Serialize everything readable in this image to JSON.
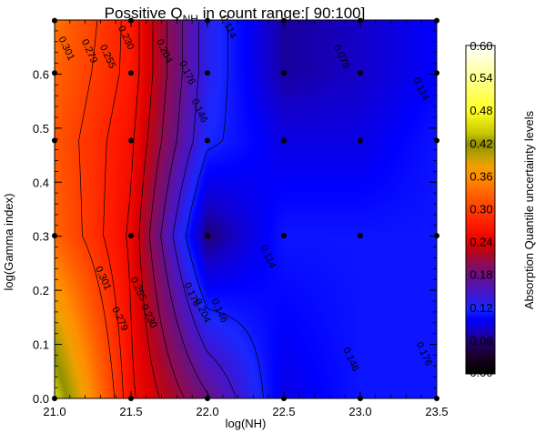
{
  "chart_data": {
    "type": "heatmap",
    "title": {
      "prefix": "Possitive Q",
      "subscript": "NH",
      "suffix": " in count range:[ 90:100]"
    },
    "xlabel": "log(NH)",
    "ylabel": "log(Gamma index)",
    "xlim": [
      21.0,
      23.5
    ],
    "ylim": [
      0.0,
      0.7
    ],
    "x_ticks": [
      "21.0",
      "21.5",
      "22.0",
      "22.5",
      "23.0",
      "23.5"
    ],
    "y_ticks": [
      "0.0",
      "0.1",
      "0.2",
      "0.3",
      "0.4",
      "0.5",
      "0.6"
    ],
    "grid_x": [
      21.0,
      21.5,
      22.0,
      22.5,
      23.0,
      23.5
    ],
    "grid_y": [
      0.0,
      0.301,
      0.477,
      0.602,
      0.699
    ],
    "z": [
      [
        0.45,
        0.26,
        0.18,
        0.09,
        0.11,
        0.11
      ],
      [
        0.33,
        0.25,
        0.06,
        0.11,
        0.11,
        0.11
      ],
      [
        0.32,
        0.26,
        0.12,
        0.09,
        0.09,
        0.11
      ],
      [
        0.33,
        0.27,
        0.13,
        0.07,
        0.08,
        0.1
      ],
      [
        0.34,
        0.27,
        0.13,
        0.07,
        0.08,
        0.1
      ]
    ],
    "sample_points": [
      [
        21.0,
        0.0
      ],
      [
        21.5,
        0.0
      ],
      [
        22.0,
        0.0
      ],
      [
        22.5,
        0.0
      ],
      [
        23.0,
        0.0
      ],
      [
        23.5,
        0.0
      ],
      [
        21.0,
        0.301
      ],
      [
        21.5,
        0.301
      ],
      [
        22.0,
        0.301
      ],
      [
        22.5,
        0.301
      ],
      [
        23.0,
        0.301
      ],
      [
        23.5,
        0.301
      ],
      [
        21.0,
        0.477
      ],
      [
        21.5,
        0.477
      ],
      [
        22.0,
        0.477
      ],
      [
        22.5,
        0.477
      ],
      [
        23.0,
        0.477
      ],
      [
        23.5,
        0.477
      ],
      [
        21.0,
        0.602
      ],
      [
        21.5,
        0.602
      ],
      [
        22.0,
        0.602
      ],
      [
        22.5,
        0.602
      ],
      [
        23.0,
        0.602
      ],
      [
        23.5,
        0.602
      ],
      [
        21.0,
        0.699
      ],
      [
        21.5,
        0.699
      ],
      [
        22.0,
        0.699
      ],
      [
        22.5,
        0.699
      ],
      [
        23.0,
        0.699
      ],
      [
        23.5,
        0.699
      ]
    ],
    "contour_levels": [
      0.114,
      0.146,
      0.176,
      0.204,
      0.23,
      0.255,
      0.279,
      0.301
    ],
    "contour_labels": [
      {
        "text": "0.301",
        "x": 21.06,
        "y": 0.645
      },
      {
        "text": "0.279",
        "x": 21.21,
        "y": 0.64
      },
      {
        "text": "0.255",
        "x": 21.33,
        "y": 0.63
      },
      {
        "text": "0.230",
        "x": 21.45,
        "y": 0.665
      },
      {
        "text": "0.204",
        "x": 21.7,
        "y": 0.64
      },
      {
        "text": "0.176",
        "x": 21.85,
        "y": 0.6
      },
      {
        "text": "0.146",
        "x": 21.93,
        "y": 0.53
      },
      {
        "text": "0.114",
        "x": 22.12,
        "y": 0.685
      },
      {
        "text": "0.079",
        "x": 22.86,
        "y": 0.63
      },
      {
        "text": "0.114",
        "x": 23.38,
        "y": 0.57
      },
      {
        "text": "0.114",
        "x": 22.38,
        "y": 0.26
      },
      {
        "text": "0.146",
        "x": 22.06,
        "y": 0.16
      },
      {
        "text": "0.176",
        "x": 21.88,
        "y": 0.19
      },
      {
        "text": "0.204",
        "x": 21.95,
        "y": 0.16
      },
      {
        "text": "0.230",
        "x": 21.6,
        "y": 0.15
      },
      {
        "text": "0.255",
        "x": 21.53,
        "y": 0.2
      },
      {
        "text": "0.279",
        "x": 21.41,
        "y": 0.145
      },
      {
        "text": "0.301",
        "x": 21.3,
        "y": 0.22
      },
      {
        "text": "0.146",
        "x": 22.92,
        "y": 0.07
      },
      {
        "text": "0.176",
        "x": 23.4,
        "y": 0.08
      }
    ],
    "colorbar": {
      "label": "Absorption Quantile uncertainty levels",
      "range": [
        0.0,
        0.6
      ],
      "ticks": [
        "0.00",
        "0.06",
        "0.12",
        "0.18",
        "0.24",
        "0.30",
        "0.36",
        "0.42",
        "0.48",
        "0.54",
        "0.60"
      ]
    },
    "colormap": [
      [
        0.0,
        "#000000"
      ],
      [
        0.03,
        "#1a0022"
      ],
      [
        0.06,
        "#1f0070"
      ],
      [
        0.08,
        "#1400c8"
      ],
      [
        0.1,
        "#0000ff"
      ],
      [
        0.12,
        "#1a28ff"
      ],
      [
        0.14,
        "#3818d8"
      ],
      [
        0.16,
        "#5414b4"
      ],
      [
        0.18,
        "#6a1080"
      ],
      [
        0.2,
        "#8a0c58"
      ],
      [
        0.22,
        "#b00620"
      ],
      [
        0.24,
        "#e00000"
      ],
      [
        0.27,
        "#ff1800"
      ],
      [
        0.3,
        "#ff3c00"
      ],
      [
        0.33,
        "#ff6400"
      ],
      [
        0.36,
        "#ff9000"
      ],
      [
        0.38,
        "#f0a000"
      ],
      [
        0.4,
        "#b8a000"
      ],
      [
        0.42,
        "#909000"
      ],
      [
        0.44,
        "#c8c800"
      ],
      [
        0.48,
        "#ffff20"
      ],
      [
        0.54,
        "#ffff90"
      ],
      [
        0.6,
        "#ffffff"
      ]
    ],
    "grid": false,
    "legend": "colorbar-right"
  }
}
